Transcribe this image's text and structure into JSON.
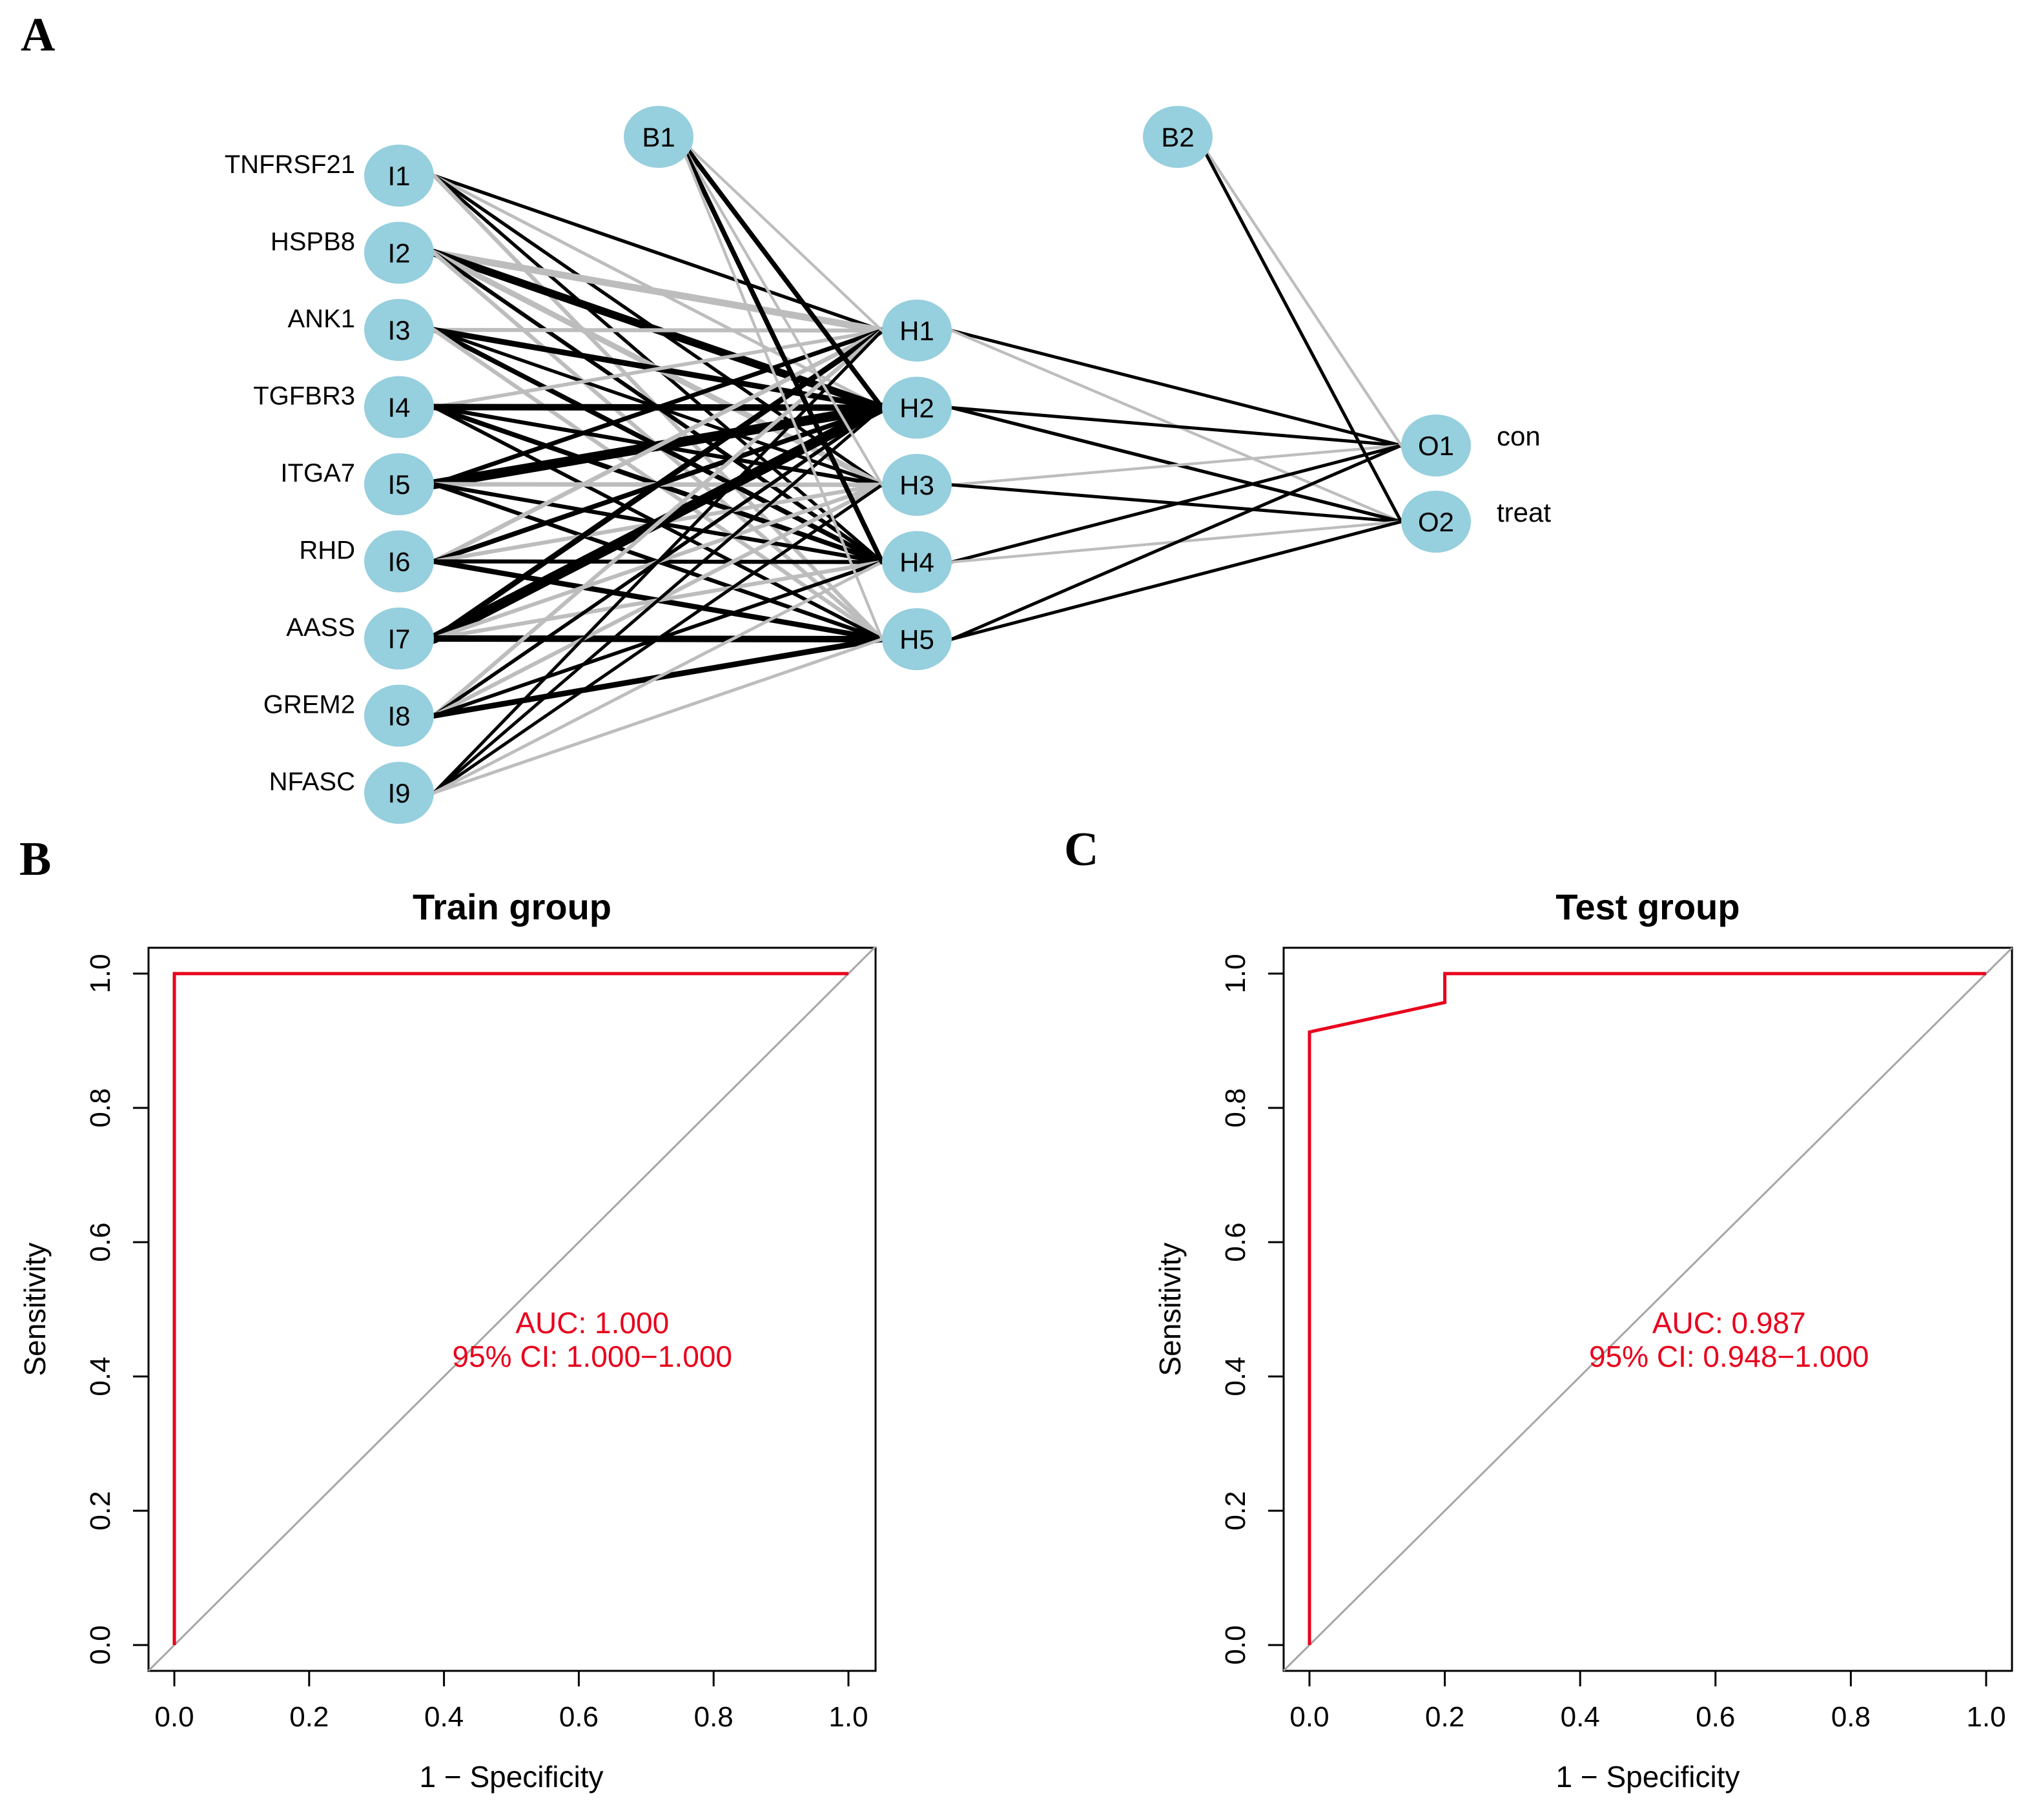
{
  "panels": {
    "a": "A",
    "b": "B",
    "c": "C"
  },
  "network": {
    "colors": {
      "node_fill": "#96cfdd",
      "positive_edge": "#000000",
      "negative_edge": "#bdbdbd"
    },
    "inputs": [
      {
        "id": "I1",
        "gene": "TNFRSF21"
      },
      {
        "id": "I2",
        "gene": "HSPB8"
      },
      {
        "id": "I3",
        "gene": "ANK1"
      },
      {
        "id": "I4",
        "gene": "TGFBR3"
      },
      {
        "id": "I5",
        "gene": "ITGA7"
      },
      {
        "id": "I6",
        "gene": "RHD"
      },
      {
        "id": "I7",
        "gene": "AASS"
      },
      {
        "id": "I8",
        "gene": "GREM2"
      },
      {
        "id": "I9",
        "gene": "NFASC"
      }
    ],
    "bias": [
      "B1",
      "B2"
    ],
    "hidden": [
      "H1",
      "H2",
      "H3",
      "H4",
      "H5"
    ],
    "outputs": [
      {
        "id": "O1",
        "label": "con"
      },
      {
        "id": "O2",
        "label": "treat"
      }
    ],
    "weights_input_hidden": [
      [
        0.9,
        -0.8,
        0.9,
        0.9,
        -1.2
      ],
      [
        -2.6,
        3.0,
        -2.0,
        1.2,
        -1.2
      ],
      [
        -1.2,
        2.0,
        0.9,
        1.6,
        -1.2
      ],
      [
        -1.0,
        2.4,
        1.2,
        1.6,
        1.0
      ],
      [
        1.4,
        4.0,
        -1.4,
        1.2,
        1.2
      ],
      [
        -1.4,
        1.6,
        -1.2,
        1.2,
        1.8
      ],
      [
        2.0,
        4.2,
        -1.2,
        -1.2,
        2.4
      ],
      [
        -1.2,
        1.0,
        -1.2,
        1.0,
        2.0
      ],
      [
        0.8,
        0.8,
        0.8,
        -0.8,
        -0.8
      ]
    ],
    "weights_bias_hidden": [
      -0.6,
      1.6,
      -0.6,
      1.6,
      -0.6
    ],
    "weights_hidden_output": [
      [
        0.8,
        -0.6
      ],
      [
        0.8,
        0.9
      ],
      [
        -0.6,
        0.8
      ],
      [
        0.8,
        -0.6
      ],
      [
        0.8,
        0.8
      ]
    ],
    "weights_bias_output": [
      -0.6,
      0.8
    ]
  },
  "chart_data": [
    {
      "type": "line",
      "title": "Train group",
      "xlabel": "1 − Specificity",
      "ylabel": "Sensitivity",
      "xlim": [
        0,
        1
      ],
      "ylim": [
        0,
        1
      ],
      "ticks": [
        "0.0",
        "0.2",
        "0.4",
        "0.6",
        "0.8",
        "1.0"
      ],
      "series": [
        {
          "color": "#e8001c",
          "x": [
            0,
            0,
            1
          ],
          "y": [
            0,
            1,
            1
          ]
        }
      ],
      "diagonal_color": "#a6a6a6",
      "auc_text": "AUC: 1.000",
      "ci_text": "95% CI: 1.000−1.000"
    },
    {
      "type": "line",
      "title": "Test group",
      "xlabel": "1 − Specificity",
      "ylabel": "Sensitivity",
      "xlim": [
        0,
        1
      ],
      "ylim": [
        0,
        1
      ],
      "ticks": [
        "0.0",
        "0.2",
        "0.4",
        "0.6",
        "0.8",
        "1.0"
      ],
      "series": [
        {
          "color": "#e8001c",
          "x": [
            0,
            0,
            0.2,
            0.2,
            1
          ],
          "y": [
            0,
            0.913,
            0.957,
            1,
            1
          ]
        }
      ],
      "diagonal_color": "#a6a6a6",
      "auc_text": "AUC: 0.987",
      "ci_text": "95% CI: 0.948−1.000"
    }
  ]
}
